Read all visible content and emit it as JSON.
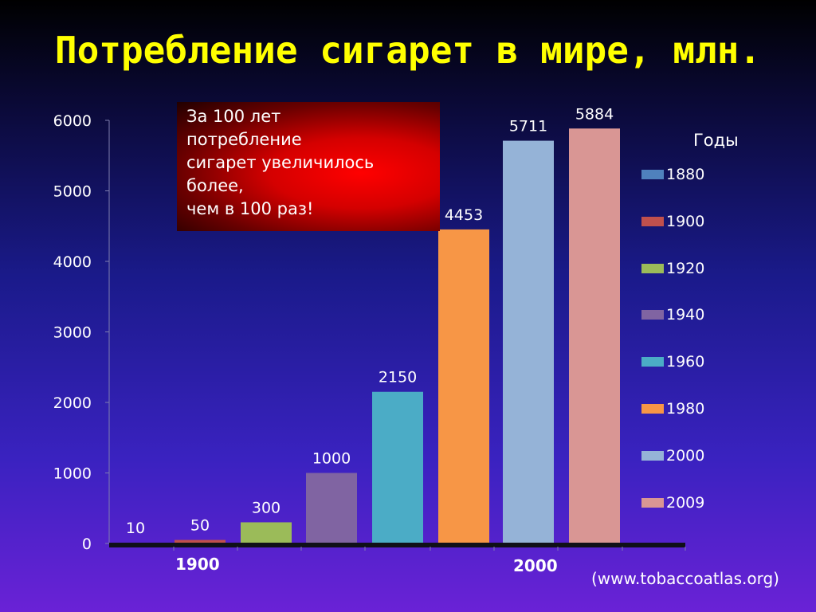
{
  "title": "Потребление сигарет в мире, млн.",
  "callout": {
    "lines": [
      "За 100 лет",
      "потребление",
      "сигарет увеличилось",
      "более,",
      "чем в 100 раз!"
    ]
  },
  "legend_title": "Годы",
  "group_labels": [
    "1900",
    "2000"
  ],
  "source": "(www.tobaccoatlas.org)",
  "chart_data": {
    "type": "bar",
    "categories": [
      "1880",
      "1900",
      "1920",
      "1940",
      "1960",
      "1980",
      "2000",
      "2009"
    ],
    "values": [
      10,
      50,
      300,
      1000,
      2150,
      4453,
      5711,
      5884
    ],
    "colors": [
      "#4f81bd",
      "#c0504d",
      "#9bbb59",
      "#8064a2",
      "#4bacc6",
      "#f79646",
      "#95b3d7",
      "#d99694"
    ],
    "y_ticks": [
      "0",
      "1000",
      "2000",
      "3000",
      "4000",
      "5000",
      "6000"
    ],
    "ylim": [
      0,
      6000
    ],
    "legend_position": "right",
    "grid": false
  }
}
